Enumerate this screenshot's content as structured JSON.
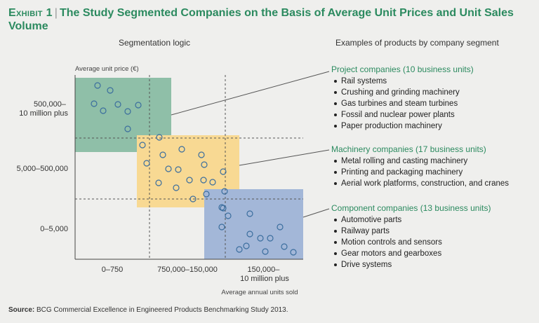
{
  "header": {
    "exhibit": "Exhibit 1",
    "title": "The Study Segmented Companies on the Basis of Average Unit Prices and Unit Sales Volume",
    "left_heading": "Segmentation logic",
    "right_heading": "Examples of products by company segment"
  },
  "chart_data": {
    "type": "scatter",
    "ylabel": "Average unit price (€)",
    "xlabel": "Average annual units sold",
    "y_tick_labels": [
      "500,000–\n10 million plus",
      "5,000–500,000",
      "0–5,000"
    ],
    "x_tick_labels": [
      "0–750",
      "750,000–150,000",
      "150,000–\n10 million plus"
    ],
    "bands": {
      "x": [
        "low",
        "medium",
        "high"
      ],
      "y": [
        "high",
        "medium",
        "low"
      ]
    },
    "series": [
      {
        "name": "Project companies (10 business units)",
        "color": "#8fbfa8",
        "x_band": "low",
        "y_band": "high",
        "count": 10
      },
      {
        "name": "Machinery companies (17 business units)",
        "color": "#f8d993",
        "x_band": "medium",
        "y_band": "medium",
        "count": 17
      },
      {
        "name": "Component companies (13 business units)",
        "color": "#a3b7d8",
        "x_band": "high",
        "y_band": "low",
        "count": 13
      }
    ]
  },
  "segments": [
    {
      "name": "Project companies (10 business units)",
      "items": [
        "Rail systems",
        "Crushing and grinding machinery",
        "Gas turbines and steam turbines",
        "Fossil and nuclear power plants",
        "Paper production machinery"
      ]
    },
    {
      "name": "Machinery companies (17 business units)",
      "items": [
        "Metal rolling and casting machinery",
        "Printing and packaging machinery",
        "Aerial work platforms, construction, and cranes"
      ]
    },
    {
      "name": "Component companies (13 business units)",
      "items": [
        "Automotive parts",
        "Railway parts",
        "Motion controls and sensors",
        "Gear motors and gearboxes",
        "Drive systems"
      ]
    }
  ],
  "source": {
    "label": "Source:",
    "text": "BCG Commercial Excellence in Engineered Products Benchmarking Study 2013."
  }
}
